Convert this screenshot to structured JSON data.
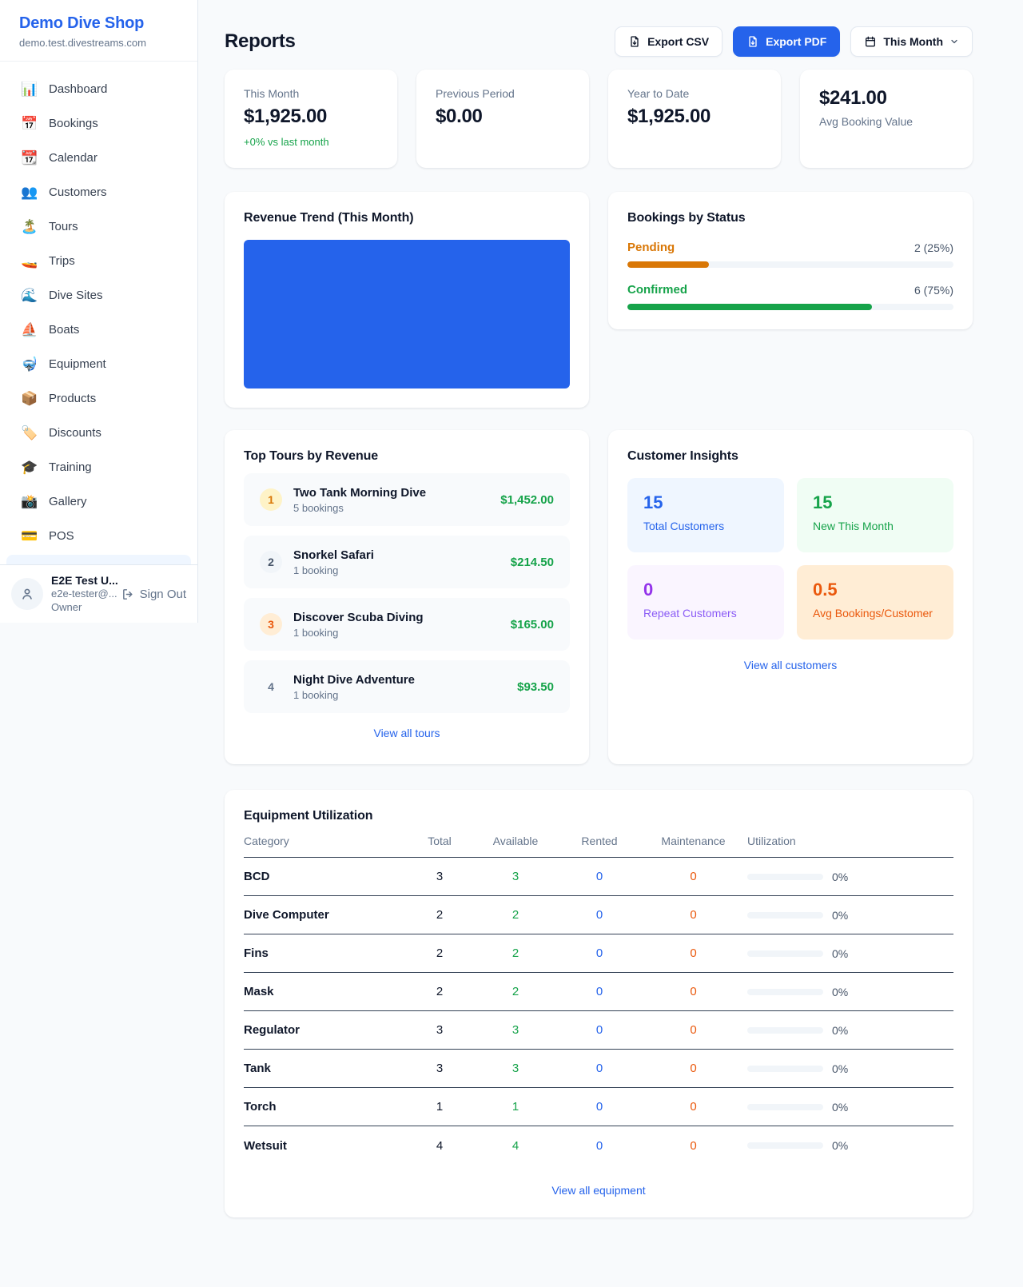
{
  "colors": {
    "accent_blue": "#2563eb",
    "money_green": "#16a34a",
    "pending_amber": "#d97706",
    "maintenance_orange": "#ea580c",
    "repeat_purple": "#9333ea",
    "chart_fill": "#2563eb"
  },
  "sidebar": {
    "brand": {
      "name": "Demo Dive Shop",
      "domain": "demo.test.divestreams.com"
    },
    "items": [
      {
        "icon": "📊",
        "label": "Dashboard"
      },
      {
        "icon": "📅",
        "label": "Bookings"
      },
      {
        "icon": "📆",
        "label": "Calendar"
      },
      {
        "icon": "👥",
        "label": "Customers"
      },
      {
        "icon": "🏝️",
        "label": "Tours"
      },
      {
        "icon": "🚤",
        "label": "Trips"
      },
      {
        "icon": "🌊",
        "label": "Dive Sites"
      },
      {
        "icon": "⛵",
        "label": "Boats"
      },
      {
        "icon": "🤿",
        "label": "Equipment"
      },
      {
        "icon": "📦",
        "label": "Products"
      },
      {
        "icon": "🏷️",
        "label": "Discounts"
      },
      {
        "icon": "🎓",
        "label": "Training"
      },
      {
        "icon": "📸",
        "label": "Gallery"
      },
      {
        "icon": "💳",
        "label": "POS"
      }
    ],
    "user": {
      "name": "E2E Test U...",
      "email": "e2e-tester@...",
      "role": "Owner",
      "sign_out": "Sign Out"
    }
  },
  "header": {
    "title": "Reports",
    "export_csv": "Export CSV",
    "export_pdf": "Export PDF",
    "period": "This Month"
  },
  "stats": [
    {
      "label": "This Month",
      "value": "$1,925.00",
      "delta": "+0% vs last month"
    },
    {
      "label": "Previous Period",
      "value": "$0.00"
    },
    {
      "label": "Year to Date",
      "value": "$1,925.00"
    },
    {
      "value": "$241.00",
      "label": "Avg Booking Value"
    }
  ],
  "revenue_trend": {
    "title": "Revenue Trend (This Month)"
  },
  "bookings_by_status": {
    "title": "Bookings by Status",
    "rows": [
      {
        "label": "Pending",
        "value": "2 (25%)",
        "pct": 25,
        "color": "#d97706"
      },
      {
        "label": "Confirmed",
        "value": "6 (75%)",
        "pct": 75,
        "color": "#16a34a"
      }
    ]
  },
  "top_tours": {
    "title": "Top Tours by Revenue",
    "rows": [
      {
        "rank": 1,
        "name": "Two Tank Morning Dive",
        "bookings": "5 bookings",
        "amount": "$1,452.00"
      },
      {
        "rank": 2,
        "name": "Snorkel Safari",
        "bookings": "1 booking",
        "amount": "$214.50"
      },
      {
        "rank": 3,
        "name": "Discover Scuba Diving",
        "bookings": "1 booking",
        "amount": "$165.00"
      },
      {
        "rank": 4,
        "name": "Night Dive Adventure",
        "bookings": "1 booking",
        "amount": "$93.50"
      }
    ],
    "link": "View all tours"
  },
  "customer_insights": {
    "title": "Customer Insights",
    "tiles": [
      {
        "value": "15",
        "label": "Total Customers"
      },
      {
        "value": "15",
        "label": "New This Month"
      },
      {
        "value": "0",
        "label": "Repeat Customers"
      },
      {
        "value": "0.5",
        "label": "Avg Bookings/Customer"
      }
    ],
    "link": "View all customers"
  },
  "equipment": {
    "title": "Equipment Utilization",
    "columns": [
      "Category",
      "Total",
      "Available",
      "Rented",
      "Maintenance",
      "Utilization"
    ],
    "rows": [
      {
        "category": "BCD",
        "total": 3,
        "available": 3,
        "rented": 0,
        "maintenance": 0,
        "utilization_pct": 0,
        "utilization_label": "0%"
      },
      {
        "category": "Dive Computer",
        "total": 2,
        "available": 2,
        "rented": 0,
        "maintenance": 0,
        "utilization_pct": 0,
        "utilization_label": "0%"
      },
      {
        "category": "Fins",
        "total": 2,
        "available": 2,
        "rented": 0,
        "maintenance": 0,
        "utilization_pct": 0,
        "utilization_label": "0%"
      },
      {
        "category": "Mask",
        "total": 2,
        "available": 2,
        "rented": 0,
        "maintenance": 0,
        "utilization_pct": 0,
        "utilization_label": "0%"
      },
      {
        "category": "Regulator",
        "total": 3,
        "available": 3,
        "rented": 0,
        "maintenance": 0,
        "utilization_pct": 0,
        "utilization_label": "0%"
      },
      {
        "category": "Tank",
        "total": 3,
        "available": 3,
        "rented": 0,
        "maintenance": 0,
        "utilization_pct": 0,
        "utilization_label": "0%"
      },
      {
        "category": "Torch",
        "total": 1,
        "available": 1,
        "rented": 0,
        "maintenance": 0,
        "utilization_pct": 0,
        "utilization_label": "0%"
      },
      {
        "category": "Wetsuit",
        "total": 4,
        "available": 4,
        "rented": 0,
        "maintenance": 0,
        "utilization_pct": 0,
        "utilization_label": "0%"
      }
    ],
    "link": "View all equipment"
  },
  "chart_data": [
    {
      "type": "bar",
      "title": "Revenue Trend (This Month)",
      "categories": [
        "This Month"
      ],
      "values": [
        1925
      ],
      "xlabel": "",
      "ylabel": "",
      "legend": "none",
      "grid": false,
      "note_layout": "single full-plot bar, no axes or tick labels visible",
      "color": "#2563eb"
    },
    {
      "type": "bar",
      "title": "Bookings by Status",
      "categories": [
        "Pending",
        "Confirmed"
      ],
      "values": [
        2,
        6
      ],
      "percents": [
        25,
        75
      ],
      "colors": [
        "#d97706",
        "#16a34a"
      ],
      "note_layout": "horizontal progress bars with right-aligned count (pct) labels"
    }
  ]
}
